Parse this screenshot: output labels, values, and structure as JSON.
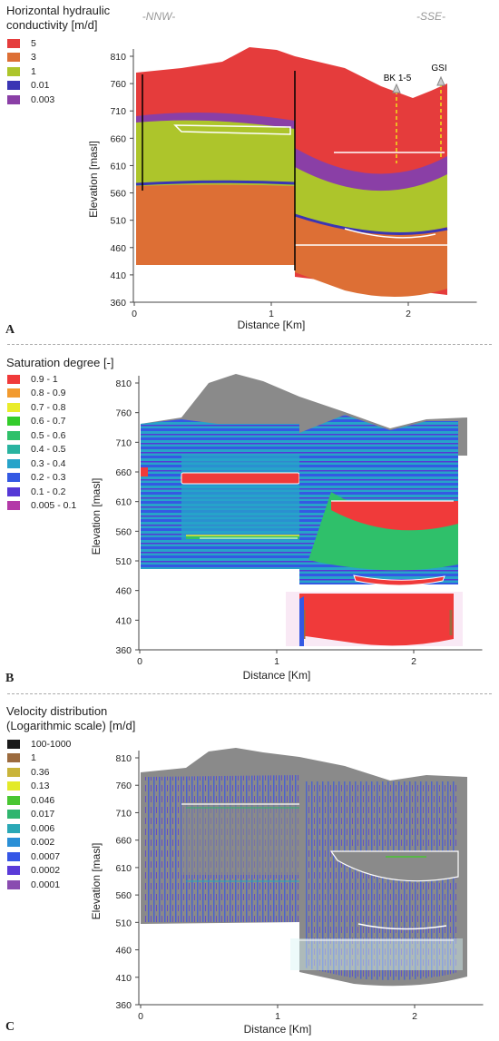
{
  "panel_a": {
    "letter": "A",
    "legend_title_lines": [
      "Horizontal hydraulic",
      "conductivity [m/d]"
    ],
    "legend": [
      {
        "label": "5",
        "color": "#e53c3c"
      },
      {
        "label": "3",
        "color": "#dd6f35"
      },
      {
        "label": "1",
        "color": "#adc52b"
      },
      {
        "label": "0.01",
        "color": "#3a35b4"
      },
      {
        "label": "0.003",
        "color": "#8a3fa6"
      }
    ],
    "direction_left": "-NNW-",
    "direction_right": "-SSE-",
    "well_labels": [
      "BK 1-5",
      "GSI"
    ],
    "ylabel": "Elevation [masl]",
    "xlabel": "Distance [Km]",
    "yticks": [
      "810",
      "760",
      "710",
      "660",
      "610",
      "560",
      "510",
      "460",
      "410",
      "360"
    ],
    "xticks": [
      "0",
      "1",
      "2"
    ]
  },
  "panel_b": {
    "letter": "B",
    "legend_title": "Saturation degree [-]",
    "legend": [
      {
        "label": "0.9 - 1",
        "color": "#f03a3a"
      },
      {
        "label": "0.8 - 0.9",
        "color": "#f29a2e"
      },
      {
        "label": "0.7 - 0.8",
        "color": "#e9ec2a"
      },
      {
        "label": "0.6 - 0.7",
        "color": "#33cc2b"
      },
      {
        "label": "0.5 - 0.6",
        "color": "#2fc06a"
      },
      {
        "label": "0.4 - 0.5",
        "color": "#29b3a0"
      },
      {
        "label": "0.3 - 0.4",
        "color": "#27a3c9"
      },
      {
        "label": "0.2 - 0.3",
        "color": "#3459e3"
      },
      {
        "label": "0.1 - 0.2",
        "color": "#5538d6"
      },
      {
        "label": "0.005 - 0.1",
        "color": "#b33aa8"
      }
    ],
    "ylabel": "Elevation [masl]",
    "xlabel": "Distance [Km]",
    "yticks": [
      "810",
      "760",
      "710",
      "660",
      "610",
      "560",
      "510",
      "460",
      "410",
      "360"
    ],
    "xticks": [
      "0",
      "1",
      "2"
    ]
  },
  "panel_c": {
    "letter": "C",
    "legend_title_lines": [
      "Velocity distribution",
      "(Logarithmic scale) [m/d]"
    ],
    "legend": [
      {
        "label": "100-1000",
        "color": "#1a1a1a"
      },
      {
        "label": "1",
        "color": "#9c6b3e"
      },
      {
        "label": "0.36",
        "color": "#c9b43a"
      },
      {
        "label": "0.13",
        "color": "#e3ea2a"
      },
      {
        "label": "0.046",
        "color": "#49c632"
      },
      {
        "label": "0.017",
        "color": "#2fb56e"
      },
      {
        "label": "0.006",
        "color": "#2aa8b6"
      },
      {
        "label": "0.002",
        "color": "#2a8fd6"
      },
      {
        "label": "0.0007",
        "color": "#3556e6"
      },
      {
        "label": "0.0002",
        "color": "#5a3ad8"
      },
      {
        "label": "0.0001",
        "color": "#8a4cb0"
      }
    ],
    "ylabel": "Elevation [masl]",
    "xlabel": "Distance [Km]",
    "yticks": [
      "810",
      "760",
      "710",
      "660",
      "610",
      "560",
      "510",
      "460",
      "410",
      "360"
    ],
    "xticks": [
      "0",
      "1",
      "2"
    ]
  }
}
